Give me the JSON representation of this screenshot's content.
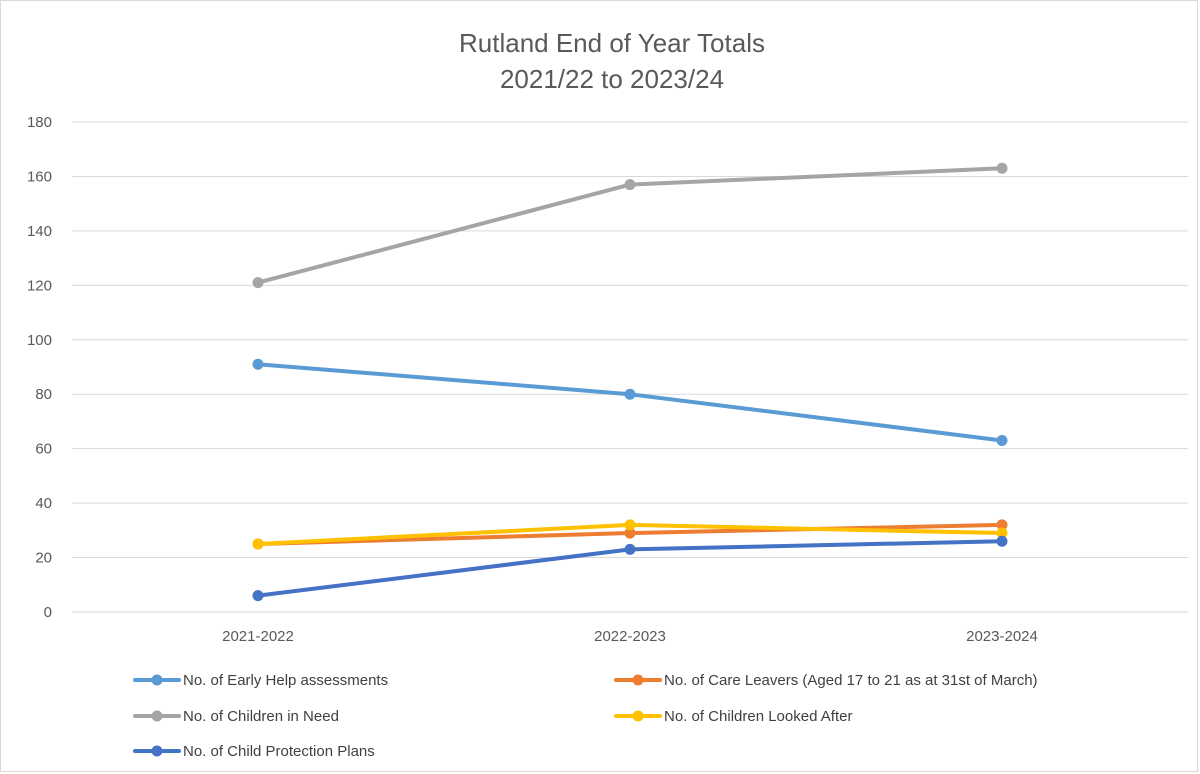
{
  "chart_data": {
    "type": "line",
    "title": "Rutland End of Year Totals",
    "subtitle": "2021/22 to 2023/24",
    "categories": [
      "2021-2022",
      "2022-2023",
      "2023-2024"
    ],
    "ylim": [
      0,
      180
    ],
    "yticks": [
      0,
      20,
      40,
      60,
      80,
      100,
      120,
      140,
      160,
      180
    ],
    "grid": true,
    "legend_position": "bottom",
    "series": [
      {
        "name": "No. of Early Help assessments",
        "values": [
          91,
          80,
          63
        ],
        "color": "#5b9bd5"
      },
      {
        "name": "No. of Care Leavers (Aged 17 to 21 as at 31st of March)",
        "values": [
          25,
          29,
          32
        ],
        "color": "#ed7d31"
      },
      {
        "name": "No. of Children in Need",
        "values": [
          121,
          157,
          163
        ],
        "color": "#a5a5a5"
      },
      {
        "name": "No. of Children Looked After",
        "values": [
          25,
          32,
          29
        ],
        "color": "#ffc000"
      },
      {
        "name": "No. of Child Protection Plans",
        "values": [
          6,
          23,
          26
        ],
        "color": "#4472c4"
      }
    ]
  }
}
